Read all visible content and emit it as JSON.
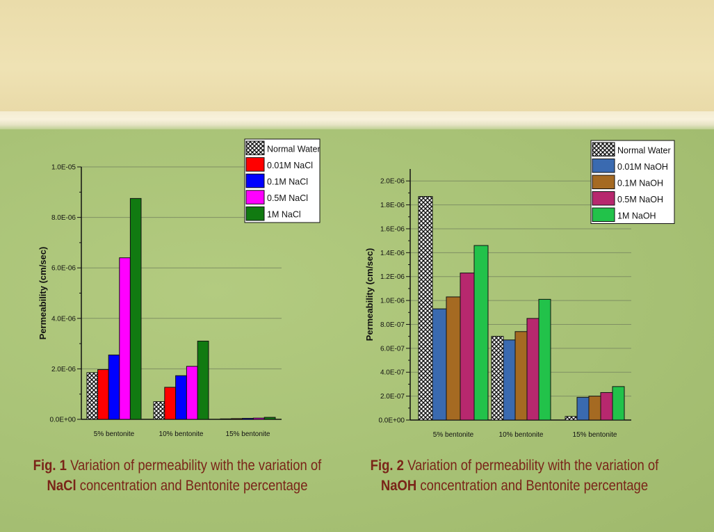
{
  "colors": {
    "background_top": "#eadcaa",
    "background_main": "#a9c275",
    "caption_text": "#7a2418"
  },
  "chart_data": [
    {
      "type": "bar",
      "title": "",
      "xlabel": "",
      "ylabel": "Permeability (cm/sec)",
      "categories": [
        "5% bentonite",
        "10% bentonite",
        "15% bentonite"
      ],
      "ylim": [
        0,
        1e-05
      ],
      "yticks": [
        0,
        2e-06,
        4e-06,
        6e-06,
        8e-06,
        1e-05
      ],
      "ytick_labels": [
        "0.0E+00",
        "2.0E-06",
        "4.0E-06",
        "6.0E-06",
        "8.0E-06",
        "1.0E-05"
      ],
      "grid": true,
      "legend_position": "top-right",
      "series": [
        {
          "name": "Normal Water",
          "color": "#222222",
          "pattern": "crosshatch",
          "values": [
            1.85e-06,
            7e-07,
            2e-08
          ]
        },
        {
          "name": "0.01M NaCl",
          "color": "#ff0000",
          "values": [
            1.97e-06,
            1.27e-06,
            3e-08
          ]
        },
        {
          "name": "0.1M NaCl",
          "color": "#0000ff",
          "values": [
            2.55e-06,
            1.73e-06,
            4e-08
          ]
        },
        {
          "name": "0.5M NaCl",
          "color": "#ff00ff",
          "values": [
            6.4e-06,
            2.1e-06,
            5e-08
          ]
        },
        {
          "name": "1M NaCl",
          "color": "#117a11",
          "values": [
            8.75e-06,
            3.1e-06,
            8e-08
          ]
        }
      ]
    },
    {
      "type": "bar",
      "title": "",
      "xlabel": "",
      "ylabel": "Permeability (cm/sec)",
      "categories": [
        "5% bentonite",
        "10% bentonite",
        "15% bentonite"
      ],
      "ylim": [
        0,
        2.1e-06
      ],
      "yticks": [
        0,
        2e-07,
        4e-07,
        6e-07,
        8e-07,
        1e-06,
        1.2e-06,
        1.4e-06,
        1.6e-06,
        1.8e-06,
        2e-06
      ],
      "ytick_labels": [
        "0.0E+00",
        "2.0E-07",
        "4.0E-07",
        "6.0E-07",
        "8.0E-07",
        "1.0E-06",
        "1.2E-06",
        "1.4E-06",
        "1.6E-06",
        "1.8E-06",
        "2.0E-06"
      ],
      "grid": true,
      "legend_position": "top-right",
      "series": [
        {
          "name": "Normal Water",
          "color": "#222222",
          "pattern": "crosshatch",
          "values": [
            1.87e-06,
            7e-07,
            3e-08
          ]
        },
        {
          "name": "0.01M NaOH",
          "color": "#3a6ab0",
          "values": [
            9.3e-07,
            6.7e-07,
            1.9e-07
          ]
        },
        {
          "name": "0.1M NaOH",
          "color": "#a56a22",
          "values": [
            1.03e-06,
            7.4e-07,
            2e-07
          ]
        },
        {
          "name": "0.5M NaOH",
          "color": "#b7286e",
          "values": [
            1.23e-06,
            8.5e-07,
            2.3e-07
          ]
        },
        {
          "name": "1M NaOH",
          "color": "#22c24a",
          "values": [
            1.46e-06,
            1.01e-06,
            2.8e-07
          ]
        }
      ]
    }
  ],
  "captions": [
    {
      "label": "Fig. 1",
      "text1": " Variation of permeability with the variation of",
      "bold2": "NaCl",
      "text2": " concentration and Bentonite percentage"
    },
    {
      "label": "Fig. 2",
      "text1": " Variation of permeability with the variation of",
      "bold2": "NaOH",
      "text2": " concentration and Bentonite percentage"
    }
  ]
}
